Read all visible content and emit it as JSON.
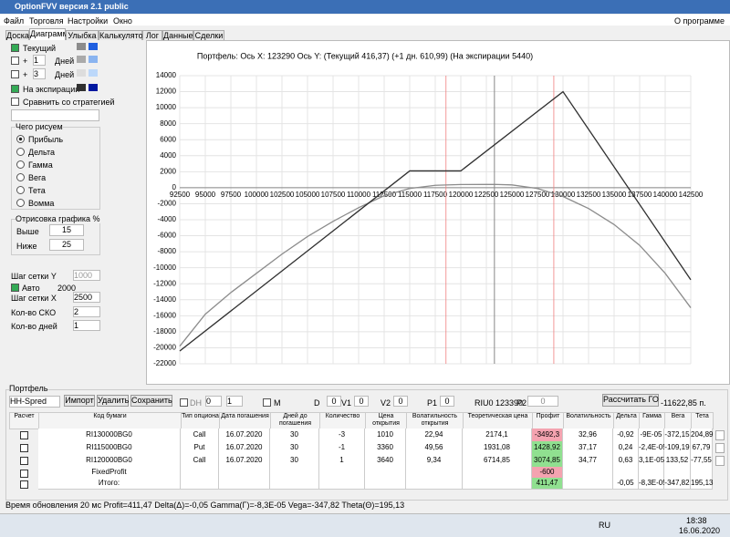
{
  "window": {
    "title": "OptionFVV версия 2.1 public"
  },
  "menu": [
    "Файл",
    "Торговля",
    "Настройки",
    "Окно"
  ],
  "menu_right": "О программе",
  "tabs": [
    "Доска",
    "Диаграмма",
    "Улыбка",
    "Калькулятор",
    "Лог",
    "Данные",
    "Сделки"
  ],
  "active_tab": 1,
  "left_panel": {
    "plus": "+",
    "plus1": {
      "value": "1",
      "label": "Дней"
    },
    "plus3": {
      "value": "3",
      "label": "Дней"
    },
    "compare": "Сравнить со стратегией",
    "draw_group": {
      "title": "Чего рисуем",
      "options": [
        "Прибыль",
        "Дельта",
        "Гамма",
        "Вега",
        "Тета",
        "Вомма"
      ],
      "selected": 0
    },
    "range_group": {
      "title": "Отрисовка графика %",
      "above": {
        "label": "Выше",
        "value": "15"
      },
      "below": {
        "label": "Ниже",
        "value": "25"
      }
    },
    "grid_y": {
      "label": "Шаг сетки Y",
      "value": "1000"
    },
    "auto": {
      "label": "Авто",
      "value": "2000"
    },
    "grid_x": {
      "label": "Шаг сетки X",
      "value": "2500"
    },
    "sko": {
      "label": "Кол-во СКО",
      "value": "2"
    },
    "days": {
      "label": "Кол-во дней",
      "value": "1"
    }
  },
  "chart_data": {
    "type": "line",
    "title": "Портфель: Ось X: 123290 Ось Y:  (Текущий 416,37)  (+1 дн. 610,99)  (На экспирации 5440)",
    "xlim": [
      92500,
      142500
    ],
    "ylim": [
      -22000,
      14000
    ],
    "xticks": [
      92500,
      95000,
      97500,
      100000,
      102500,
      105000,
      107500,
      110000,
      112500,
      115000,
      117500,
      120000,
      122500,
      125000,
      127500,
      130000,
      132500,
      135000,
      137500,
      140000,
      142500
    ],
    "yticks": [
      -22000,
      -20000,
      -18000,
      -16000,
      -14000,
      -12000,
      -10000,
      -8000,
      -6000,
      -4000,
      -2000,
      0,
      2000,
      4000,
      6000,
      8000,
      10000,
      12000,
      14000
    ],
    "grid": true,
    "cursor_x": 123290,
    "sd_lines": [
      118550,
      129100
    ],
    "series": [
      {
        "name": "Текущий",
        "color": "#8c8c8c",
        "x": [
          92500,
          95000,
          97500,
          100000,
          102500,
          105000,
          107500,
          110000,
          112500,
          115000,
          117500,
          120000,
          122500,
          123290,
          125000,
          127500,
          130000,
          132500,
          135000,
          137500,
          140000,
          142500
        ],
        "values": [
          -19800,
          -15800,
          -13100,
          -10700,
          -8300,
          -6100,
          -4200,
          -2500,
          -1000,
          -100,
          300,
          400,
          410,
          416.37,
          350,
          -100,
          -1100,
          -2600,
          -4600,
          -7200,
          -10700,
          -15000
        ]
      },
      {
        "name": "На экспирации",
        "color": "#303030",
        "x": [
          92500,
          115000,
          120000,
          130000,
          142500
        ],
        "values": [
          -20400,
          2100,
          2100,
          12000,
          -11500
        ]
      }
    ]
  },
  "portfolio": {
    "title": "Портфель",
    "select": "HH-Spred",
    "buttons": [
      "Импорт",
      "Удалить",
      "Сохранить"
    ],
    "dh": "DH",
    "dh1": "0",
    "dh2": "1",
    "m": "M",
    "fields": [
      {
        "label": "D",
        "value": "0"
      },
      {
        "label": "V1",
        "value": "0"
      },
      {
        "label": "V2",
        "value": "0"
      },
      {
        "label": "P1",
        "value": "0"
      }
    ],
    "ticker": "RIU0 123390",
    "p2": {
      "label": "P2",
      "value": "0"
    },
    "go_button": "Рассчитать ГО",
    "go_value": "-11622,85 п."
  },
  "table": {
    "headers": [
      "Расчет",
      "Код бумаги",
      "Тип опциона",
      "Дата погашения",
      "Дней до погашения",
      "Количество",
      "Цена открытия",
      "Волатильность открытия",
      "Теоретическая цена",
      "Профит",
      "Волатильность",
      "Дельта",
      "Гамма",
      "Вега",
      "Тета"
    ],
    "rows": [
      {
        "cells": [
          "RI130000BG0",
          "Call",
          "16.07.2020",
          "30",
          "-3",
          "1010",
          "22,94",
          "2174,1",
          "-3492,3",
          "32,96",
          "-0,92",
          "-9E-05",
          "-372,15",
          "204,89"
        ],
        "profit_bg": "#f4a3b0"
      },
      {
        "cells": [
          "RI115000BG0",
          "Put",
          "16.07.2020",
          "30",
          "-1",
          "3360",
          "49,56",
          "1931,08",
          "1428,92",
          "37,17",
          "0,24",
          "-2,4E-05",
          "-109,19",
          "67,79"
        ],
        "profit_bg": "#90e090"
      },
      {
        "cells": [
          "RI120000BG0",
          "Call",
          "16.07.2020",
          "30",
          "1",
          "3640",
          "9,34",
          "6714,85",
          "3074,85",
          "34,77",
          "0,63",
          "3,1E-05",
          "133,52",
          "-77,55"
        ],
        "profit_bg": "#90e090"
      },
      {
        "cells": [
          "FixedProfit",
          null,
          null,
          null,
          null,
          null,
          null,
          null,
          "-600",
          null,
          null,
          null,
          null,
          null
        ],
        "profit_bg": "#f4a3b0"
      },
      {
        "cells": [
          "Итого:",
          null,
          null,
          null,
          null,
          null,
          null,
          null,
          "411,47",
          null,
          "-0,05",
          "-8,3E-05",
          "-347,82",
          "195,13"
        ],
        "profit_bg": "#90e090"
      }
    ]
  },
  "status": "Время обновления 20 мс  Profit=411,47 Delta(Δ)=-0,05 Gamma(Γ)=-8,3E-05 Vega=-347,82 Theta(Θ)=195,13",
  "taskbar": {
    "lang": "RU",
    "time": "18:38",
    "date": "16.06.2020"
  }
}
